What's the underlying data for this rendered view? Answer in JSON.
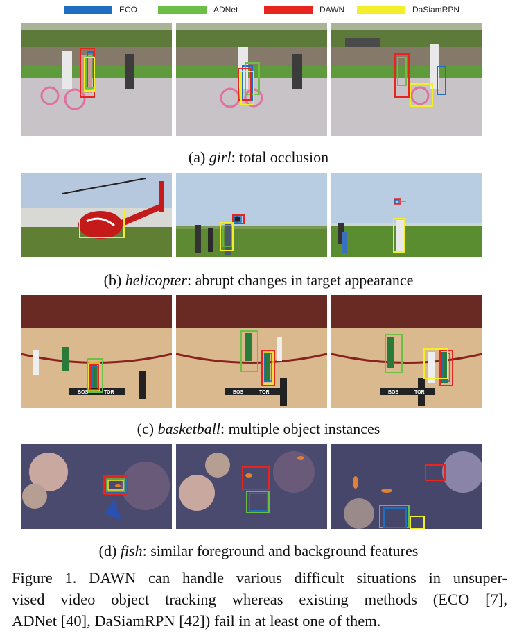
{
  "legend": [
    {
      "name": "ECO",
      "color": "#1f6fc0"
    },
    {
      "name": "ADNet",
      "color": "#6bbf45"
    },
    {
      "name": "DAWN",
      "color": "#e8241f"
    },
    {
      "name": "DaSiamRPN",
      "color": "#f2ee2a"
    }
  ],
  "rows": [
    {
      "label": "(a)",
      "name": "girl",
      "desc": ": total occlusion"
    },
    {
      "label": "(b)",
      "name": "helicopter",
      "desc": ": abrupt changes in target appearance"
    },
    {
      "label": "(c)",
      "name": "basketball",
      "desc": ": multiple object instances"
    },
    {
      "label": "(d)",
      "name": "fish",
      "desc": ": similar foreground and background features"
    }
  ],
  "overlays": {
    "score_left": "BOS",
    "score_right": "TOR"
  },
  "figure_caption": {
    "line1": "Figure 1. DAWN can handle various difficult situations in unsuper-",
    "line2": "vised video object tracking whereas existing methods (ECO [7],",
    "line3": "ADNet [40], DaSiamRPN [42]) fail in at least one of them."
  }
}
